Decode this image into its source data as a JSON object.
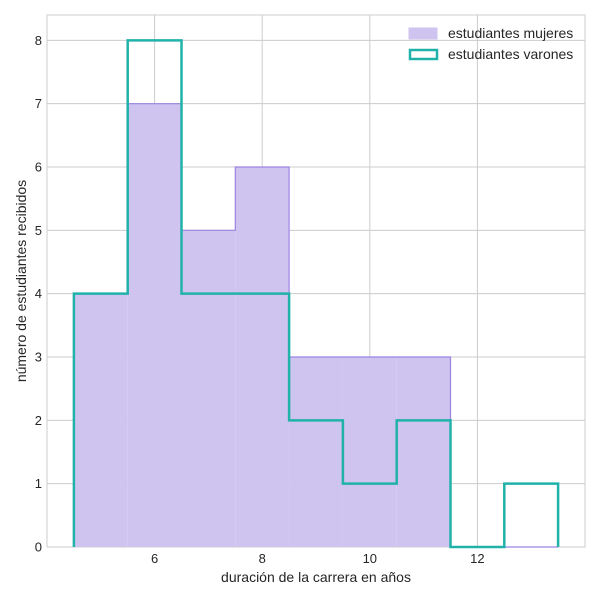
{
  "chart_data": {
    "type": "histogram-step",
    "xlabel": "duración de la carrera en años",
    "ylabel": "número de estudiantes recibidos",
    "xlim": [
      4.0,
      14.0
    ],
    "ylim": [
      0,
      8.4
    ],
    "xticks": [
      6,
      8,
      10,
      12
    ],
    "yticks": [
      0,
      1,
      2,
      3,
      4,
      5,
      6,
      7,
      8
    ],
    "grid": true,
    "legend_position": "top-right",
    "bin_edges": [
      4.5,
      5.5,
      6.5,
      7.5,
      8.5,
      9.5,
      10.5,
      11.5,
      12.5,
      13.5
    ],
    "series": [
      {
        "name": "estudiantes mujeres",
        "style": "filled",
        "fill_color": "#cfc3f0",
        "edge_color": "#9b84e0",
        "values": [
          4,
          7,
          5,
          6,
          3,
          3,
          3,
          0,
          0
        ]
      },
      {
        "name": "estudiantes varones",
        "style": "step",
        "edge_color": "#20b2aa",
        "values": [
          4,
          8,
          4,
          4,
          2,
          1,
          2,
          0,
          1
        ]
      }
    ]
  }
}
